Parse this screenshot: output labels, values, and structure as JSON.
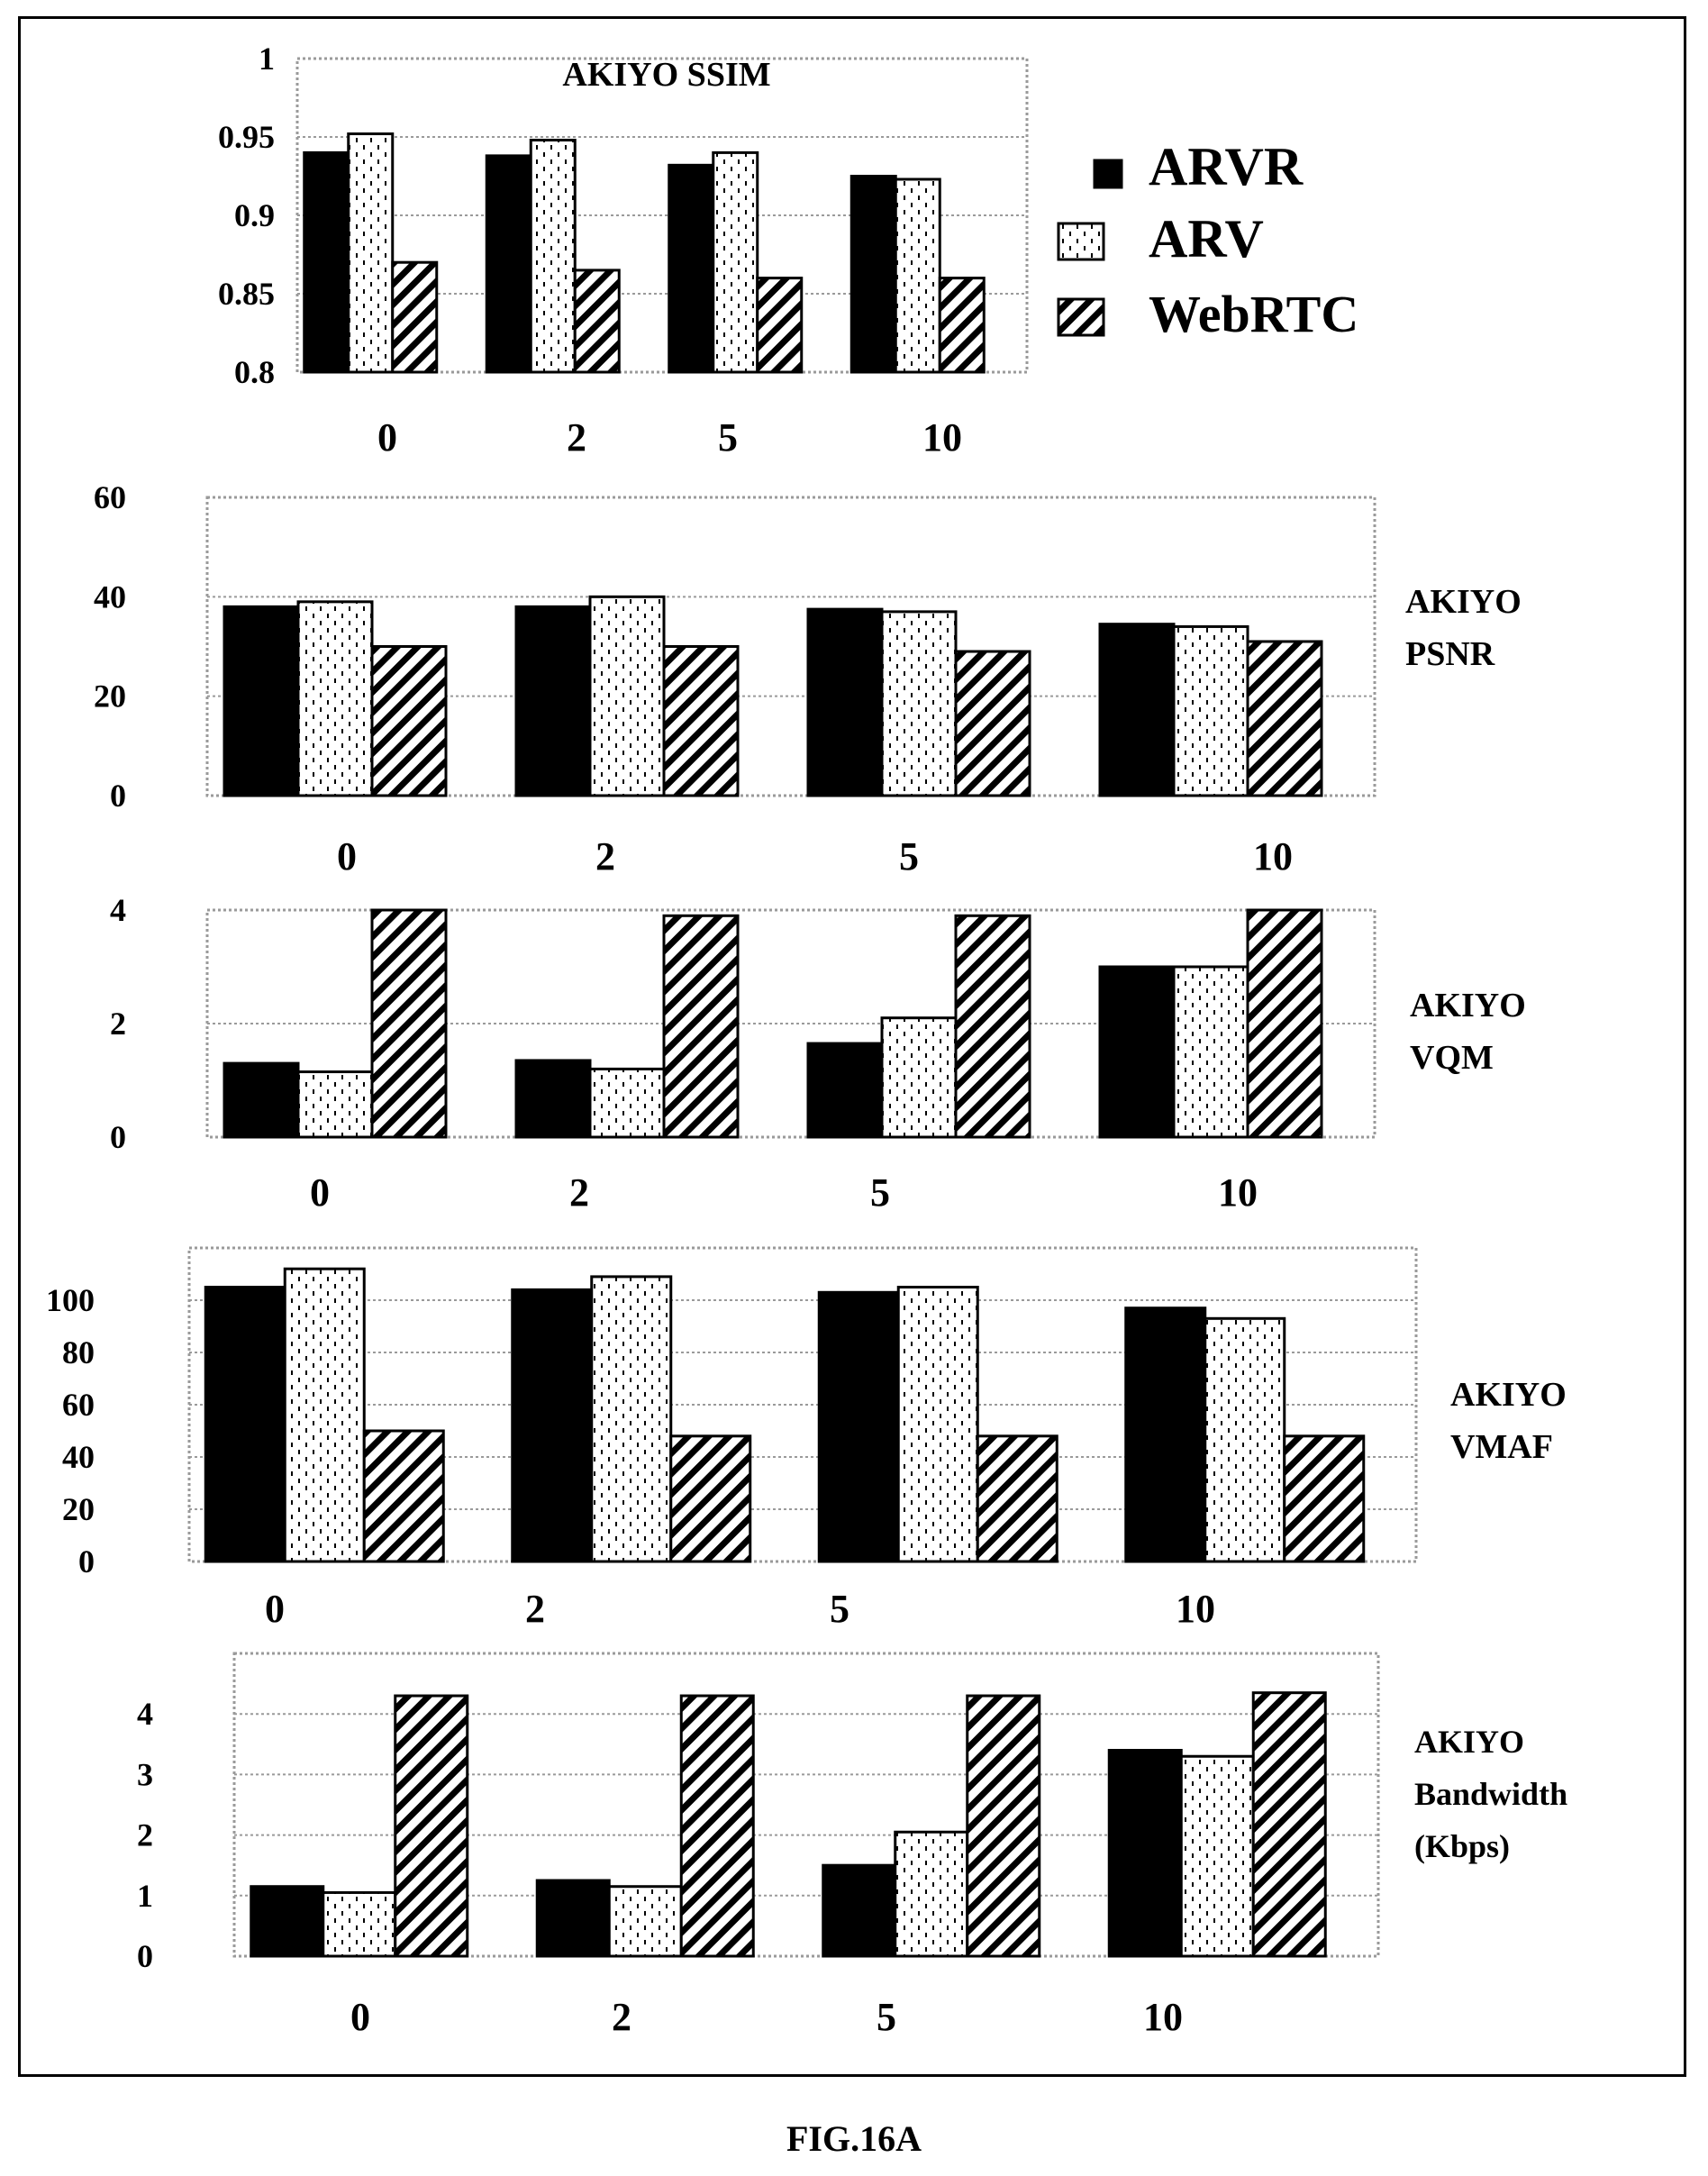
{
  "figure_caption": "FIG.16A",
  "legend": [
    {
      "label": "ARVR",
      "pattern": "solid"
    },
    {
      "label": "ARV",
      "pattern": "dotted"
    },
    {
      "label": "WebRTC",
      "pattern": "hatched"
    }
  ],
  "colors": {
    "ink": "#000000",
    "grid": "#9a9a9a",
    "background": "#ffffff"
  },
  "chart_data": [
    {
      "type": "bar",
      "title": "AKIYO SSIM",
      "categories": [
        "0",
        "2",
        "5",
        "10"
      ],
      "series": [
        {
          "name": "ARVR",
          "values": [
            0.94,
            0.938,
            0.932,
            0.925
          ]
        },
        {
          "name": "ARV",
          "values": [
            0.952,
            0.948,
            0.94,
            0.923
          ]
        },
        {
          "name": "WebRTC",
          "values": [
            0.87,
            0.865,
            0.86,
            0.86
          ]
        }
      ],
      "ylim": [
        0.8,
        1
      ],
      "yticks": [
        "1",
        "0.95",
        "0.9",
        "0.85",
        "0.8"
      ],
      "grid": true,
      "legend": "right"
    },
    {
      "type": "bar",
      "title_lines": [
        "AKIYO",
        "PSNR"
      ],
      "categories": [
        "0",
        "2",
        "5",
        "10"
      ],
      "series": [
        {
          "name": "ARVR",
          "values": [
            38,
            38,
            37.5,
            34.5
          ]
        },
        {
          "name": "ARV",
          "values": [
            39,
            40,
            37,
            34
          ]
        },
        {
          "name": "WebRTC",
          "values": [
            30,
            30,
            29,
            31
          ]
        }
      ],
      "ylim": [
        0,
        60
      ],
      "yticks": [
        "60",
        "40",
        "20",
        "0"
      ],
      "grid": true
    },
    {
      "type": "bar",
      "title_lines": [
        "AKIYO",
        "VQM"
      ],
      "categories": [
        "0",
        "2",
        "5",
        "10"
      ],
      "series": [
        {
          "name": "ARVR",
          "values": [
            1.3,
            1.35,
            1.65,
            3
          ]
        },
        {
          "name": "ARV",
          "values": [
            1.15,
            1.2,
            2.1,
            3
          ]
        },
        {
          "name": "WebRTC",
          "values": [
            4,
            3.9,
            3.9,
            4
          ]
        }
      ],
      "ylim": [
        0,
        4
      ],
      "yticks": [
        "4",
        "2",
        "0"
      ],
      "grid": true
    },
    {
      "type": "bar",
      "title_lines": [
        "AKIYO",
        "VMAF"
      ],
      "categories": [
        "0",
        "2",
        "5",
        "10"
      ],
      "series": [
        {
          "name": "ARVR",
          "values": [
            105,
            104,
            103,
            97
          ]
        },
        {
          "name": "ARV",
          "values": [
            112,
            109,
            105,
            93
          ]
        },
        {
          "name": "WebRTC",
          "values": [
            50,
            48,
            48,
            48
          ]
        }
      ],
      "ylim": [
        0,
        120
      ],
      "yticks": [
        "100",
        "80",
        "60",
        "40",
        "20",
        "0"
      ],
      "grid": true
    },
    {
      "type": "bar",
      "title_lines": [
        "AKIYO",
        "Bandwidth",
        "(Kbps)"
      ],
      "categories": [
        "0",
        "2",
        "5",
        "10"
      ],
      "series": [
        {
          "name": "ARVR",
          "values": [
            1.15,
            1.25,
            1.5,
            3.4
          ]
        },
        {
          "name": "ARV",
          "values": [
            1.05,
            1.15,
            2.05,
            3.3
          ]
        },
        {
          "name": "WebRTC",
          "values": [
            4.3,
            4.3,
            4.3,
            4.35
          ]
        }
      ],
      "ylim": [
        0,
        5
      ],
      "yticks": [
        "4",
        "3",
        "2",
        "1",
        "0"
      ],
      "grid": true
    }
  ]
}
